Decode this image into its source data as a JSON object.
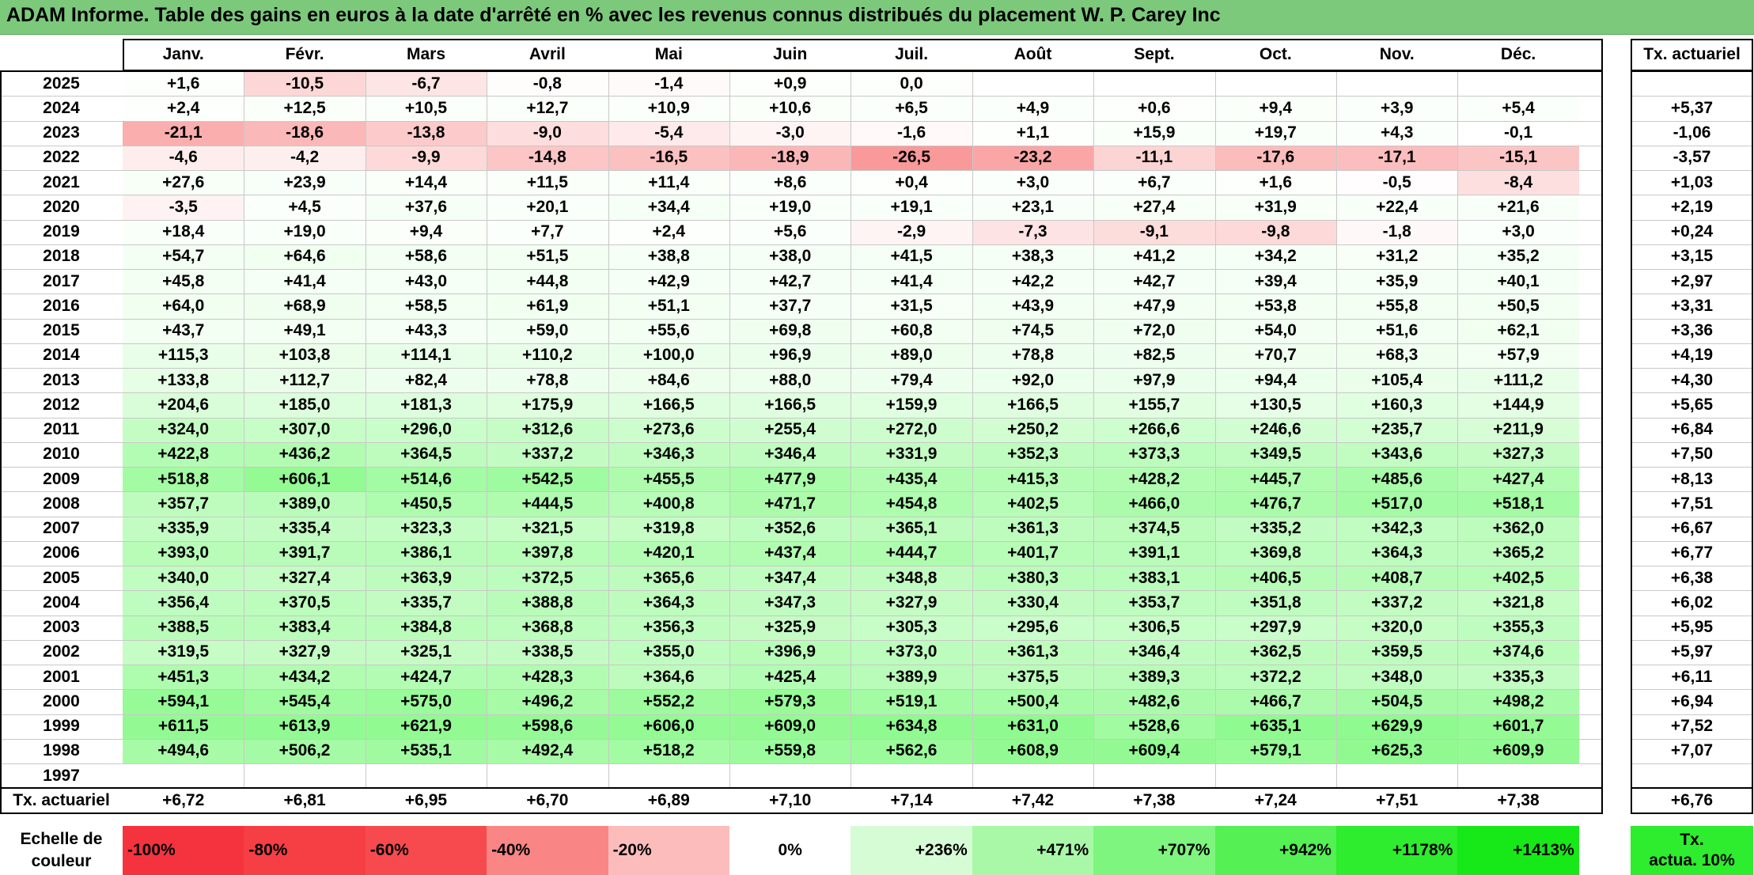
{
  "title": "ADAM Informe. Table des gains en euros à la date d'arrêté en % avec les revenus connus distribués du placement W. P. Carey Inc",
  "chart_data": {
    "type": "table",
    "months": [
      "Janv.",
      "Févr.",
      "Mars",
      "Avril",
      "Mai",
      "Juin",
      "Juil.",
      "Août",
      "Sept.",
      "Oct.",
      "Nov.",
      "Déc."
    ],
    "rate_header": "Tx. actuariel",
    "rows": [
      {
        "year": "2025",
        "values": [
          "+1,6",
          "-10,5",
          "-6,7",
          "-0,8",
          "-1,4",
          "+0,9",
          "0,0",
          "",
          "",
          "",
          "",
          ""
        ],
        "rate": ""
      },
      {
        "year": "2024",
        "values": [
          "+2,4",
          "+12,5",
          "+10,5",
          "+12,7",
          "+10,9",
          "+10,6",
          "+6,5",
          "+4,9",
          "+0,6",
          "+9,4",
          "+3,9",
          "+5,4"
        ],
        "rate": "+5,37"
      },
      {
        "year": "2023",
        "values": [
          "-21,1",
          "-18,6",
          "-13,8",
          "-9,0",
          "-5,4",
          "-3,0",
          "-1,6",
          "+1,1",
          "+15,9",
          "+19,7",
          "+4,3",
          "-0,1"
        ],
        "rate": "-1,06"
      },
      {
        "year": "2022",
        "values": [
          "-4,6",
          "-4,2",
          "-9,9",
          "-14,8",
          "-16,5",
          "-18,9",
          "-26,5",
          "-23,2",
          "-11,1",
          "-17,6",
          "-17,1",
          "-15,1"
        ],
        "rate": "-3,57"
      },
      {
        "year": "2021",
        "values": [
          "+27,6",
          "+23,9",
          "+14,4",
          "+11,5",
          "+11,4",
          "+8,6",
          "+0,4",
          "+3,0",
          "+6,7",
          "+1,6",
          "-0,5",
          "-8,4"
        ],
        "rate": "+1,03"
      },
      {
        "year": "2020",
        "values": [
          "-3,5",
          "+4,5",
          "+37,6",
          "+20,1",
          "+34,4",
          "+19,0",
          "+19,1",
          "+23,1",
          "+27,4",
          "+31,9",
          "+22,4",
          "+21,6"
        ],
        "rate": "+2,19"
      },
      {
        "year": "2019",
        "values": [
          "+18,4",
          "+19,0",
          "+9,4",
          "+7,7",
          "+2,4",
          "+5,6",
          "-2,9",
          "-7,3",
          "-9,1",
          "-9,8",
          "-1,8",
          "+3,0"
        ],
        "rate": "+0,24"
      },
      {
        "year": "2018",
        "values": [
          "+54,7",
          "+64,6",
          "+58,6",
          "+51,5",
          "+38,8",
          "+38,0",
          "+41,5",
          "+38,3",
          "+41,2",
          "+34,2",
          "+31,2",
          "+35,2"
        ],
        "rate": "+3,15"
      },
      {
        "year": "2017",
        "values": [
          "+45,8",
          "+41,4",
          "+43,0",
          "+44,8",
          "+42,9",
          "+42,7",
          "+41,4",
          "+42,2",
          "+42,7",
          "+39,4",
          "+35,9",
          "+40,1"
        ],
        "rate": "+2,97"
      },
      {
        "year": "2016",
        "values": [
          "+64,0",
          "+68,9",
          "+58,5",
          "+61,9",
          "+51,1",
          "+37,7",
          "+31,5",
          "+43,9",
          "+47,9",
          "+53,8",
          "+55,8",
          "+50,5"
        ],
        "rate": "+3,31"
      },
      {
        "year": "2015",
        "values": [
          "+43,7",
          "+49,1",
          "+43,3",
          "+59,0",
          "+55,6",
          "+69,8",
          "+60,8",
          "+74,5",
          "+72,0",
          "+54,0",
          "+51,6",
          "+62,1"
        ],
        "rate": "+3,36"
      },
      {
        "year": "2014",
        "values": [
          "+115,3",
          "+103,8",
          "+114,1",
          "+110,2",
          "+100,0",
          "+96,9",
          "+89,0",
          "+78,8",
          "+82,5",
          "+70,7",
          "+68,3",
          "+57,9"
        ],
        "rate": "+4,19"
      },
      {
        "year": "2013",
        "values": [
          "+133,8",
          "+112,7",
          "+82,4",
          "+78,8",
          "+84,6",
          "+88,0",
          "+79,4",
          "+92,0",
          "+97,9",
          "+94,4",
          "+105,4",
          "+111,2"
        ],
        "rate": "+4,30"
      },
      {
        "year": "2012",
        "values": [
          "+204,6",
          "+185,0",
          "+181,3",
          "+175,9",
          "+166,5",
          "+166,5",
          "+159,9",
          "+166,5",
          "+155,7",
          "+130,5",
          "+160,3",
          "+144,9"
        ],
        "rate": "+5,65"
      },
      {
        "year": "2011",
        "values": [
          "+324,0",
          "+307,0",
          "+296,0",
          "+312,6",
          "+273,6",
          "+255,4",
          "+272,0",
          "+250,2",
          "+266,6",
          "+246,6",
          "+235,7",
          "+211,9"
        ],
        "rate": "+6,84"
      },
      {
        "year": "2010",
        "values": [
          "+422,8",
          "+436,2",
          "+364,5",
          "+337,2",
          "+346,3",
          "+346,4",
          "+331,9",
          "+352,3",
          "+373,3",
          "+349,5",
          "+343,6",
          "+327,3"
        ],
        "rate": "+7,50"
      },
      {
        "year": "2009",
        "values": [
          "+518,8",
          "+606,1",
          "+514,6",
          "+542,5",
          "+455,5",
          "+477,9",
          "+435,4",
          "+415,3",
          "+428,2",
          "+445,7",
          "+485,6",
          "+427,4"
        ],
        "rate": "+8,13"
      },
      {
        "year": "2008",
        "values": [
          "+357,7",
          "+389,0",
          "+450,5",
          "+444,5",
          "+400,8",
          "+471,7",
          "+454,8",
          "+402,5",
          "+466,0",
          "+476,7",
          "+517,0",
          "+518,1"
        ],
        "rate": "+7,51"
      },
      {
        "year": "2007",
        "values": [
          "+335,9",
          "+335,4",
          "+323,3",
          "+321,5",
          "+319,8",
          "+352,6",
          "+365,1",
          "+361,3",
          "+374,5",
          "+335,2",
          "+342,3",
          "+362,0"
        ],
        "rate": "+6,67"
      },
      {
        "year": "2006",
        "values": [
          "+393,0",
          "+391,7",
          "+386,1",
          "+397,8",
          "+420,1",
          "+437,4",
          "+444,7",
          "+401,7",
          "+391,1",
          "+369,8",
          "+364,3",
          "+365,2"
        ],
        "rate": "+6,77"
      },
      {
        "year": "2005",
        "values": [
          "+340,0",
          "+327,4",
          "+363,9",
          "+372,5",
          "+365,6",
          "+347,4",
          "+348,8",
          "+380,3",
          "+383,1",
          "+406,5",
          "+408,7",
          "+402,5"
        ],
        "rate": "+6,38"
      },
      {
        "year": "2004",
        "values": [
          "+356,4",
          "+370,5",
          "+335,7",
          "+388,8",
          "+364,3",
          "+347,3",
          "+327,9",
          "+330,4",
          "+353,7",
          "+351,8",
          "+337,2",
          "+321,8"
        ],
        "rate": "+6,02"
      },
      {
        "year": "2003",
        "values": [
          "+388,5",
          "+383,4",
          "+384,8",
          "+368,8",
          "+356,3",
          "+325,9",
          "+305,3",
          "+295,6",
          "+306,5",
          "+297,9",
          "+320,0",
          "+355,3"
        ],
        "rate": "+5,95"
      },
      {
        "year": "2002",
        "values": [
          "+319,5",
          "+327,9",
          "+325,1",
          "+338,5",
          "+355,0",
          "+396,9",
          "+373,0",
          "+361,3",
          "+346,4",
          "+362,5",
          "+359,5",
          "+374,6"
        ],
        "rate": "+5,97"
      },
      {
        "year": "2001",
        "values": [
          "+451,3",
          "+434,2",
          "+424,7",
          "+428,3",
          "+364,6",
          "+425,4",
          "+389,9",
          "+375,5",
          "+389,3",
          "+372,2",
          "+348,0",
          "+335,3"
        ],
        "rate": "+6,11"
      },
      {
        "year": "2000",
        "values": [
          "+594,1",
          "+545,4",
          "+575,0",
          "+496,2",
          "+552,2",
          "+579,3",
          "+519,1",
          "+500,4",
          "+482,6",
          "+466,7",
          "+504,5",
          "+498,2"
        ],
        "rate": "+6,94"
      },
      {
        "year": "1999",
        "values": [
          "+611,5",
          "+613,9",
          "+621,9",
          "+598,6",
          "+606,0",
          "+609,0",
          "+634,8",
          "+631,0",
          "+528,6",
          "+635,1",
          "+629,9",
          "+601,7"
        ],
        "rate": "+7,52"
      },
      {
        "year": "1998",
        "values": [
          "+494,6",
          "+506,2",
          "+535,1",
          "+492,4",
          "+518,2",
          "+559,8",
          "+562,6",
          "+608,9",
          "+609,4",
          "+579,1",
          "+625,3",
          "+609,9"
        ],
        "rate": "+7,07"
      },
      {
        "year": "1997",
        "values": [
          "",
          "",
          "",
          "",
          "",
          "",
          "",
          "",
          "",
          "",
          "",
          ""
        ],
        "rate": ""
      }
    ],
    "footer": {
      "label": "Tx. actuariel",
      "values": [
        "+6,72",
        "+6,81",
        "+6,95",
        "+6,70",
        "+6,89",
        "+7,10",
        "+7,14",
        "+7,42",
        "+7,38",
        "+7,24",
        "+7,51",
        "+7,38"
      ],
      "rate": "+6,76"
    },
    "scale": {
      "label_line1": "Echelle de",
      "label_line2": "couleur",
      "items": [
        {
          "text": "-100%",
          "color": "#f5333f"
        },
        {
          "text": "-80%",
          "color": "#f63e45"
        },
        {
          "text": "-60%",
          "color": "#f74a4f"
        },
        {
          "text": "-40%",
          "color": "#fa8585"
        },
        {
          "text": "-20%",
          "color": "#fdbcbc"
        },
        {
          "text": "0%",
          "color": "#ffffff"
        },
        {
          "text": "+236%",
          "color": "#d6fcd6"
        },
        {
          "text": "+471%",
          "color": "#a8f8a8"
        },
        {
          "text": "+707%",
          "color": "#7ef57e"
        },
        {
          "text": "+942%",
          "color": "#54f054"
        },
        {
          "text": "+1178%",
          "color": "#2eec2e"
        },
        {
          "text": "+1413%",
          "color": "#17e817"
        }
      ],
      "rate_label_line1": "Tx.",
      "rate_label_line2": "actua. 10%",
      "rate_color": "#2eec2e"
    }
  }
}
